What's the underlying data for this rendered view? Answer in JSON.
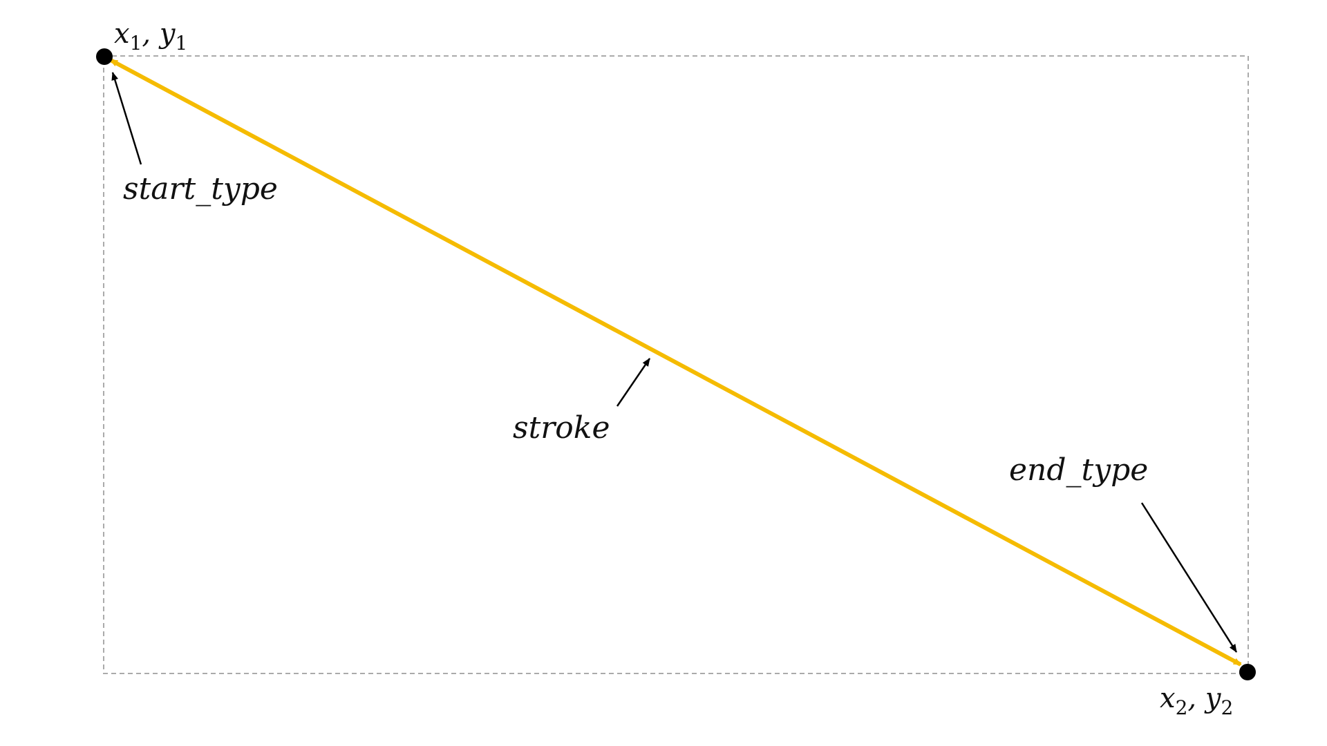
{
  "labels": {
    "start_point": {
      "x": "x",
      "x_sub": "1",
      "sep": ", ",
      "y": "y",
      "y_sub": "1"
    },
    "end_point": {
      "x": "x",
      "x_sub": "2",
      "sep": ", ",
      "y": "y",
      "y_sub": "2"
    },
    "start_type": "start_type",
    "stroke": "stroke",
    "end_type": "end_type"
  },
  "colors": {
    "line": "#F5BB00",
    "point": "#000000",
    "annotation_arrow": "#000000",
    "bounding_box": "#AAAAAA"
  },
  "line": {
    "start_marker": "arrowhead",
    "end_marker": "arrowhead"
  },
  "bounding_box": {
    "style": "dashed"
  }
}
